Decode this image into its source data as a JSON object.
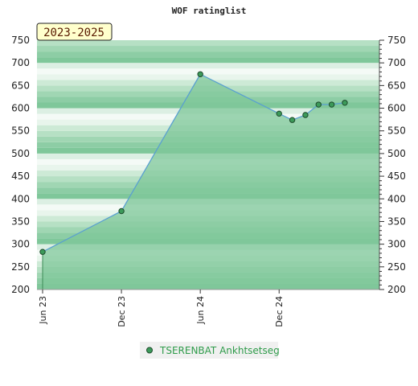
{
  "chart_data": {
    "type": "area",
    "title": "WOF ratinglist",
    "badge": "2023-2025",
    "xlabel": "",
    "ylabel": "",
    "ylim": [
      200,
      750
    ],
    "y_ticks": [
      200,
      250,
      300,
      350,
      400,
      450,
      500,
      550,
      600,
      650,
      700,
      750
    ],
    "x_ticks": [
      {
        "label": "Jun 23",
        "x": "2023-06"
      },
      {
        "label": "Dec 23",
        "x": "2023-12"
      },
      {
        "label": "Jun 24",
        "x": "2024-06"
      },
      {
        "label": "Dec 24",
        "x": "2024-12"
      }
    ],
    "x_range": [
      "2023-06",
      "2025-08"
    ],
    "legend_position": "bottom-center",
    "grid": true,
    "series": [
      {
        "name": "TSERENBAT Ankhtsetseg",
        "points": [
          {
            "x": "2023-06",
            "y": 283
          },
          {
            "x": "2023-12",
            "y": 373
          },
          {
            "x": "2024-06",
            "y": 675
          },
          {
            "x": "2024-12",
            "y": 588
          },
          {
            "x": "2025-01",
            "y": 574
          },
          {
            "x": "2025-02",
            "y": 585
          },
          {
            "x": "2025-03",
            "y": 608
          },
          {
            "x": "2025-04",
            "y": 608
          },
          {
            "x": "2025-05",
            "y": 612
          }
        ]
      }
    ],
    "colors": {
      "fill": "#7fc79a",
      "line": "#5aa0d0",
      "marker": "#3c9a5a",
      "legend_text": "#2e9b4a",
      "badge_bg": "#ffffcc"
    }
  }
}
